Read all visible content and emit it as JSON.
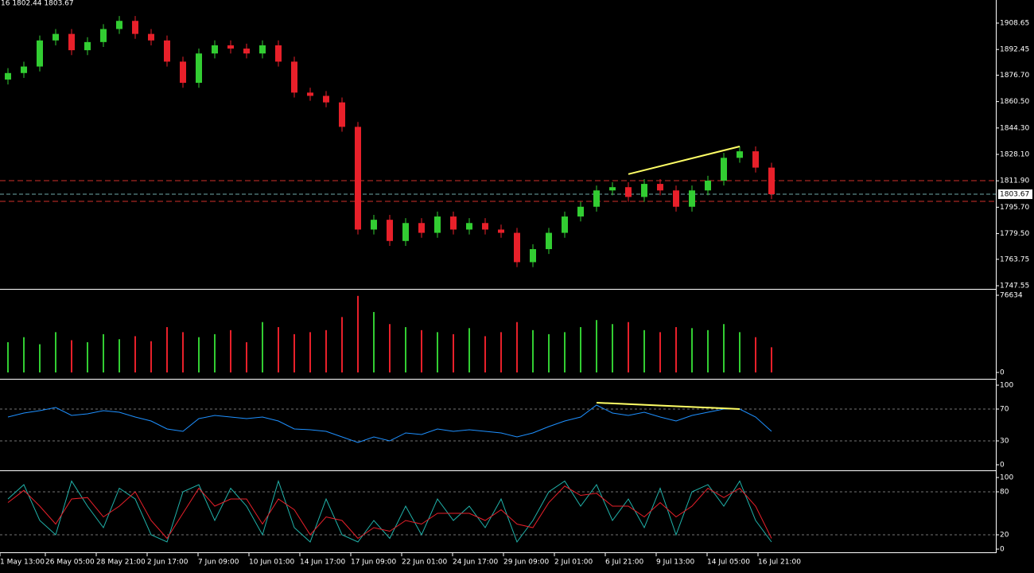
{
  "header": "16 1802.44 1803.67",
  "chart_data": [
    {
      "type": "candlestick",
      "open": [
        1874,
        1878,
        1882,
        1898,
        1902,
        1892,
        1897,
        1905,
        1910,
        1902,
        1898,
        1885,
        1872,
        1890,
        1895,
        1893,
        1890,
        1895,
        1885,
        1866,
        1864,
        1860,
        1845,
        1782,
        1788,
        1775,
        1786,
        1780,
        1790,
        1782,
        1786,
        1782,
        1780,
        1762,
        1770,
        1780,
        1790,
        1796,
        1806,
        1808,
        1802,
        1810,
        1806,
        1796,
        1806,
        1812,
        1826,
        1830,
        1820
      ],
      "high": [
        1881,
        1885,
        1901,
        1905,
        1905,
        1900,
        1908,
        1913,
        1913,
        1905,
        1901,
        1888,
        1893,
        1898,
        1898,
        1896,
        1898,
        1898,
        1888,
        1869,
        1867,
        1863,
        1848,
        1791,
        1791,
        1789,
        1789,
        1793,
        1793,
        1789,
        1789,
        1785,
        1783,
        1773,
        1783,
        1793,
        1799,
        1809,
        1811,
        1811,
        1813,
        1813,
        1809,
        1809,
        1815,
        1829,
        1833,
        1833,
        1823
      ],
      "low": [
        1871,
        1875,
        1879,
        1895,
        1889,
        1889,
        1894,
        1902,
        1899,
        1895,
        1882,
        1869,
        1869,
        1887,
        1890,
        1887,
        1887,
        1882,
        1863,
        1861,
        1857,
        1842,
        1779,
        1779,
        1772,
        1772,
        1777,
        1777,
        1779,
        1779,
        1779,
        1777,
        1759,
        1759,
        1767,
        1777,
        1787,
        1793,
        1803,
        1799,
        1799,
        1803,
        1793,
        1793,
        1803,
        1809,
        1823,
        1817,
        1800.67
      ],
      "close": [
        1878,
        1882,
        1898,
        1902,
        1892,
        1897,
        1905,
        1910,
        1902,
        1898,
        1885,
        1872,
        1890,
        1895,
        1893,
        1890,
        1895,
        1885,
        1866,
        1864,
        1860,
        1845,
        1782,
        1788,
        1775,
        1786,
        1780,
        1790,
        1782,
        1786,
        1782,
        1780,
        1762,
        1770,
        1780,
        1790,
        1796,
        1806,
        1808,
        1802,
        1810,
        1806,
        1796,
        1806,
        1812,
        1826,
        1830,
        1820,
        1803.67
      ],
      "up_color": "#32cd32",
      "down_color": "#e8202a",
      "ylim": [
        1746.1,
        1922.8
      ],
      "yticks": [
        1908.65,
        1892.45,
        {
          "value": 1876.7,
          "label": "1876.70"
        },
        {
          "value": 1860.5,
          "label": "1860.50"
        },
        {
          "value": 1844.3,
          "label": "1844.30"
        },
        {
          "value": 1828.1,
          "label": "1828.10"
        },
        {
          "value": 1811.9,
          "label": "1811.90"
        },
        {
          "value": 1795.7,
          "label": "1795.70"
        },
        {
          "value": 1779.5,
          "label": "1779.50"
        },
        1763.75,
        1747.55
      ],
      "grid": false,
      "levels": [
        {
          "value": 1812.0,
          "color": "#d0302a"
        },
        {
          "value": 1799.3,
          "color": "#d0302a"
        }
      ],
      "price_label": {
        "value": 1803.67,
        "color": "#6fa8a8"
      },
      "trendlines": [
        {
          "x": [
            39,
            46
          ],
          "y": [
            1816,
            1833
          ],
          "color": "#ffff66"
        }
      ],
      "xlabels": [
        "1 May 13:00",
        "26 May 05:00",
        "28 May 21:00",
        "2 Jun 17:00",
        "7 Jun 09:00",
        "10 Jun 01:00",
        "14 Jun 17:00",
        "17 Jun 09:00",
        "22 Jun 01:00",
        "24 Jun 17:00",
        "29 Jun 09:00",
        "2 Jul 01:00",
        "6 Jul 21:00",
        "9 Jul 13:00",
        "14 Jul 05:00",
        "16 Jul 21:00"
      ]
    },
    {
      "type": "bar",
      "values": [
        30000,
        35000,
        28000,
        40000,
        32000,
        30000,
        38000,
        33000,
        36000,
        31000,
        45000,
        40000,
        35000,
        38000,
        42000,
        30000,
        50000,
        45000,
        38000,
        40000,
        42000,
        55000,
        76000,
        60000,
        48000,
        45000,
        42000,
        40000,
        38000,
        44000,
        36000,
        40000,
        50000,
        42000,
        38000,
        40000,
        45000,
        52000,
        48000,
        50000,
        42000,
        40000,
        45000,
        44000,
        42000,
        48000,
        40000,
        35000,
        25000
      ],
      "ylim": [
        0,
        76634
      ],
      "yticks": [
        0,
        76634
      ],
      "grid": false
    },
    {
      "type": "line",
      "series": [
        {
          "color": "#1e90ff",
          "values": [
            60,
            65,
            68,
            72,
            62,
            64,
            68,
            66,
            60,
            55,
            45,
            42,
            58,
            62,
            60,
            58,
            60,
            55,
            45,
            44,
            42,
            35,
            28,
            35,
            30,
            40,
            38,
            45,
            42,
            44,
            42,
            40,
            35,
            40,
            48,
            55,
            60,
            75,
            65,
            62,
            66,
            60,
            55,
            62,
            66,
            70,
            70,
            60,
            42
          ]
        }
      ],
      "ylim": [
        0,
        100
      ],
      "yticks": [
        0,
        30,
        70,
        100
      ],
      "grid": true,
      "trendlines": [
        {
          "x": [
            37,
            46
          ],
          "y": [
            78,
            70
          ],
          "color": "#ffff66"
        }
      ]
    },
    {
      "type": "line",
      "series": [
        {
          "color": "#20b2aa",
          "values": [
            70,
            90,
            40,
            20,
            95,
            60,
            30,
            85,
            70,
            20,
            10,
            80,
            90,
            40,
            85,
            60,
            20,
            95,
            30,
            10,
            70,
            20,
            10,
            40,
            15,
            60,
            20,
            70,
            40,
            60,
            30,
            70,
            10,
            40,
            80,
            95,
            60,
            90,
            40,
            70,
            30,
            85,
            20,
            80,
            90,
            60,
            95,
            40,
            10
          ]
        },
        {
          "color": "#e8202a",
          "values": [
            65,
            82,
            60,
            35,
            70,
            72,
            45,
            60,
            80,
            40,
            15,
            50,
            85,
            60,
            70,
            70,
            35,
            70,
            55,
            20,
            45,
            40,
            15,
            30,
            25,
            40,
            35,
            50,
            50,
            50,
            40,
            55,
            35,
            30,
            65,
            88,
            75,
            78,
            60,
            60,
            45,
            65,
            45,
            60,
            85,
            72,
            85,
            60,
            15
          ]
        }
      ],
      "ylim": [
        0,
        100
      ],
      "yticks": [
        0,
        20,
        80,
        100
      ],
      "grid": true
    }
  ]
}
